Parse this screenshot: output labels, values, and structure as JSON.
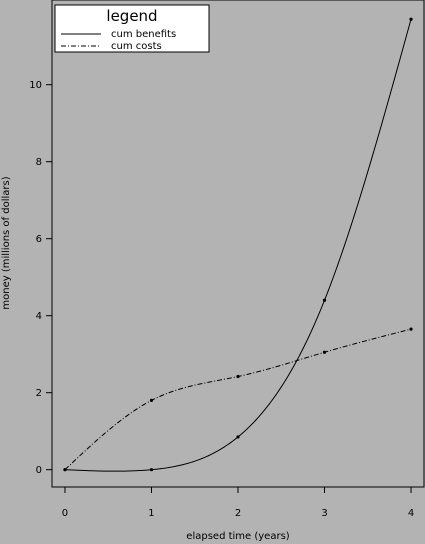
{
  "chart_data": {
    "type": "line",
    "title": "",
    "xlabel": "elapsed time (years)",
    "ylabel": "money (millions of dollars)",
    "xlim": [
      -0.15,
      4.15
    ],
    "ylim": [
      -0.45,
      12.2
    ],
    "xticks": [
      0,
      1,
      2,
      3,
      4
    ],
    "yticks": [
      0,
      2,
      4,
      6,
      8,
      10
    ],
    "grid": false,
    "background": "#b3b3b3",
    "line_color": "#000000",
    "legend": {
      "title": "legend",
      "placement": "top-left"
    },
    "series": [
      {
        "name": "cum benefits",
        "style": "solid",
        "x": [
          0,
          1,
          2,
          3,
          4
        ],
        "y": [
          0.0,
          0.0,
          0.85,
          4.4,
          11.7
        ]
      },
      {
        "name": "cum costs",
        "style": "dashdot",
        "x": [
          0,
          1,
          2,
          3,
          4
        ],
        "y": [
          0.0,
          1.8,
          2.42,
          3.05,
          3.65
        ]
      }
    ]
  }
}
